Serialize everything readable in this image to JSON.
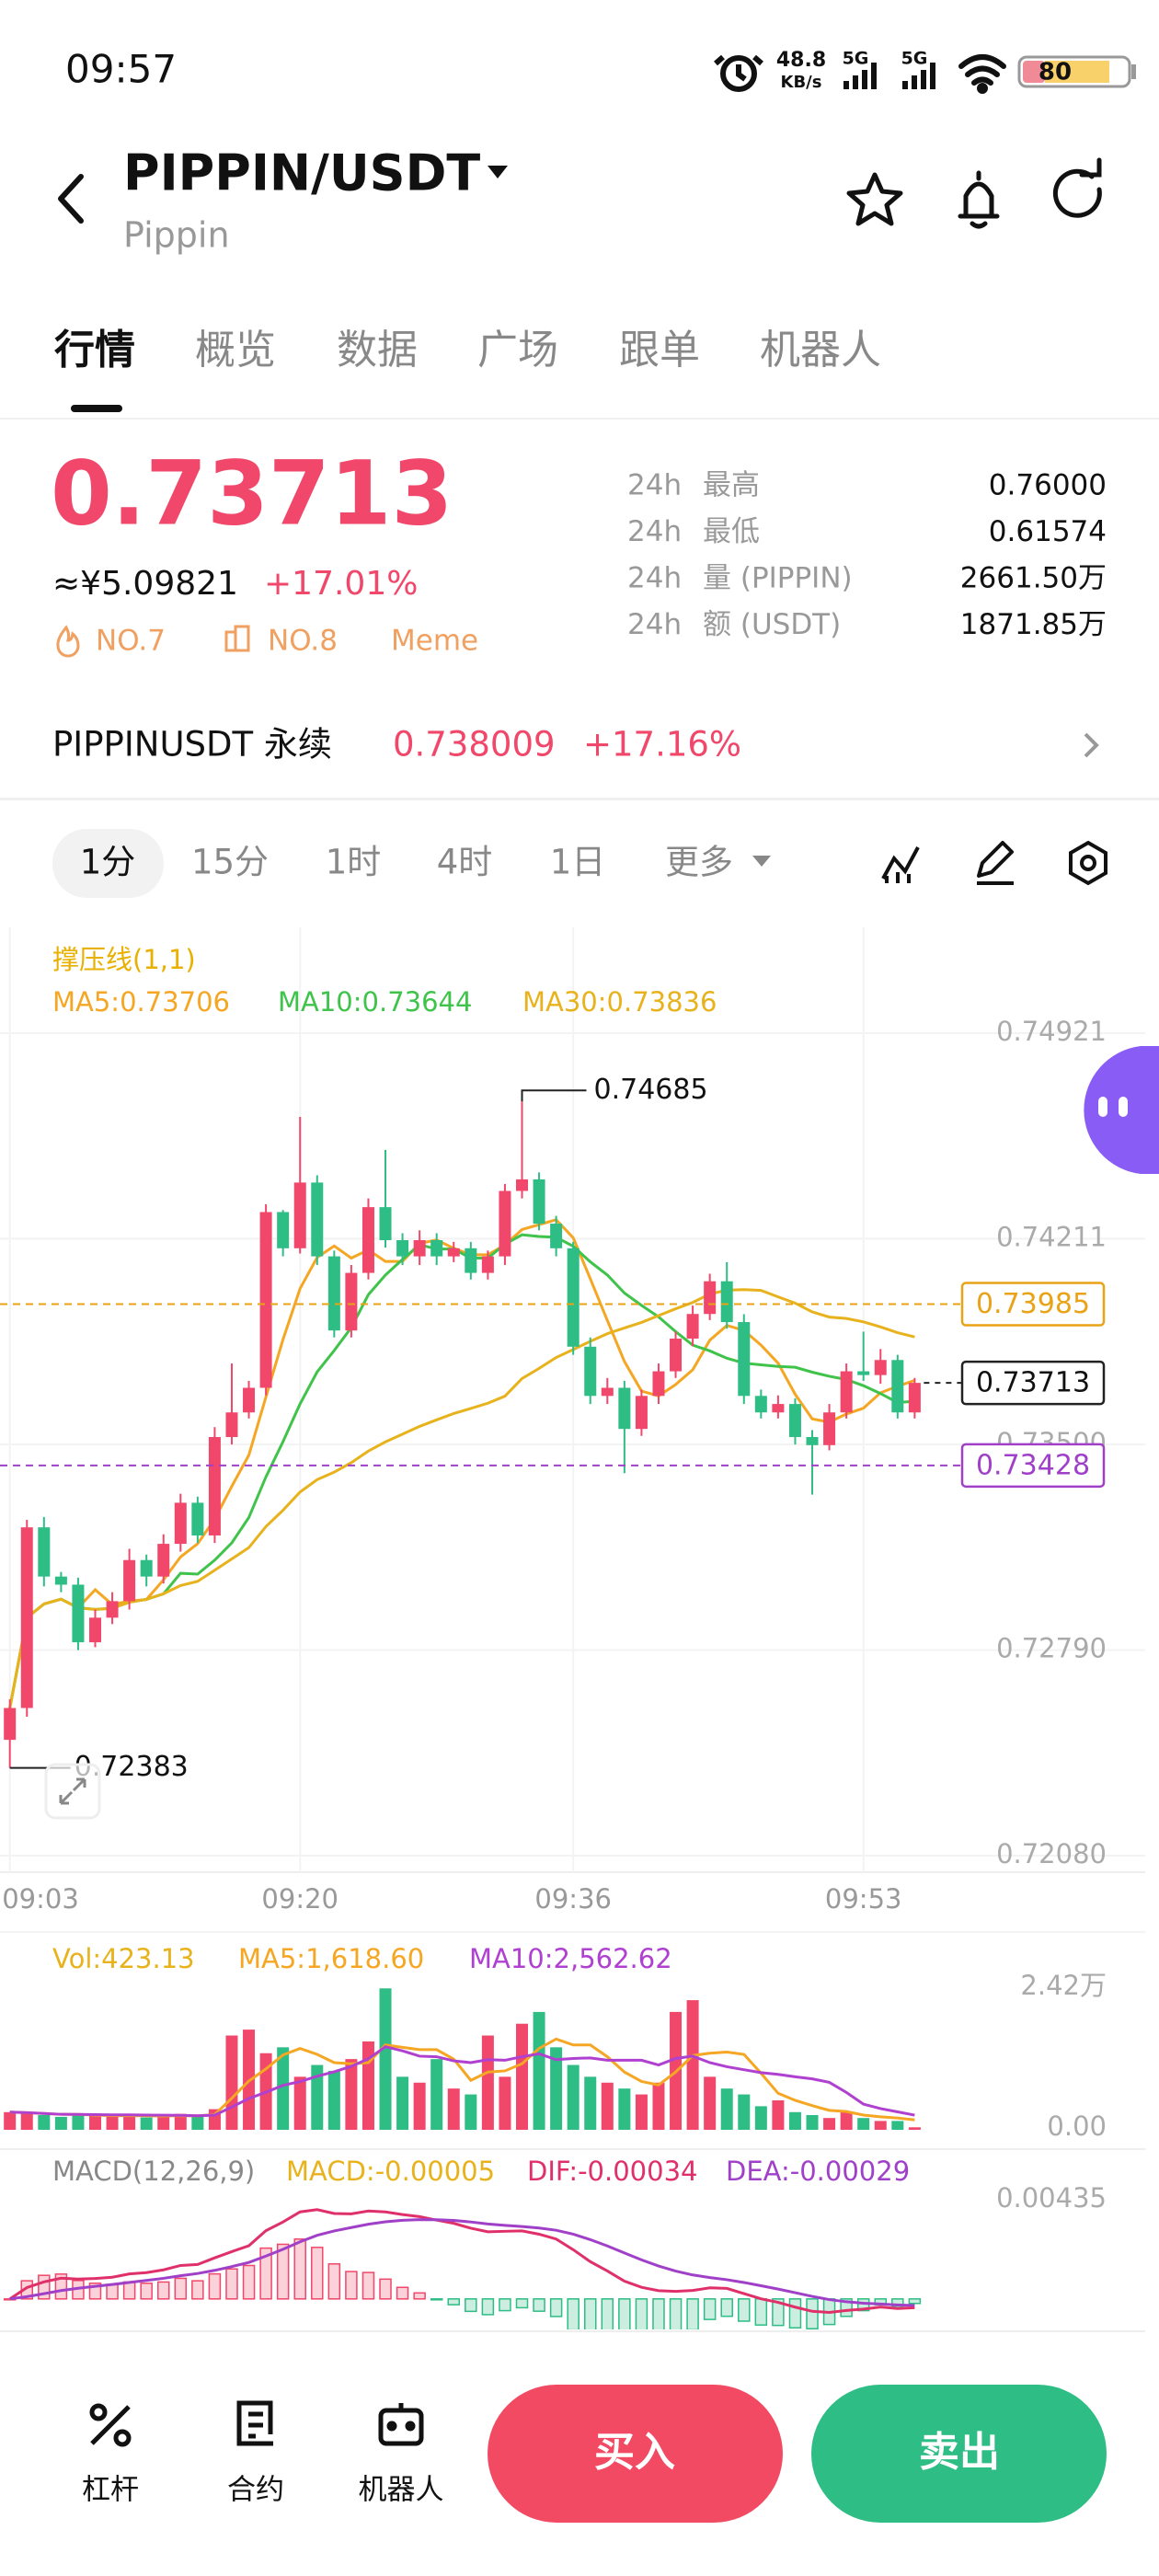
{
  "status_bar": {
    "time": "09:57",
    "net_speed": "48.8",
    "net_unit": "KB/s",
    "network_1": "5G",
    "network_2": "5G",
    "battery": "80"
  },
  "header": {
    "title": "PIPPIN/USDT",
    "subtitle": "Pippin"
  },
  "tabs": [
    "行情",
    "概览",
    "数据",
    "广场",
    "跟单",
    "机器人"
  ],
  "ticker": {
    "price": "0.73713",
    "cny_price": "≈¥5.09821",
    "change": "+17.01%",
    "tags": [
      "NO.7",
      "NO.8",
      "Meme"
    ],
    "stats": [
      {
        "period": "24h",
        "label": "最高",
        "value": "0.76000"
      },
      {
        "period": "24h",
        "label": "最低",
        "value": "0.61574"
      },
      {
        "period": "24h",
        "label": "量 (PIPPIN)",
        "value": "2661.50万"
      },
      {
        "period": "24h",
        "label": "额 (USDT)",
        "value": "1871.85万"
      }
    ]
  },
  "perpetual": {
    "symbol": "PIPPINUSDT 永续",
    "price": "0.738009",
    "change": "+17.16%"
  },
  "intervals": [
    "1分",
    "15分",
    "1时",
    "4时",
    "1日",
    "更多"
  ],
  "chart_data": {
    "type": "candlestick",
    "indicator_label": "撑压线(1,1)",
    "ma_legend": [
      "MA5:0.73706",
      "MA10:0.73644",
      "MA30:0.73836"
    ],
    "ma_colors": [
      "#f5a623",
      "#3fc34a",
      "#e8b21c"
    ],
    "up_color": "#f0476a",
    "down_color": "#2ebd85",
    "categories": [
      "09:03",
      null,
      null,
      null,
      null,
      null,
      null,
      null,
      null,
      null,
      null,
      null,
      null,
      null,
      null,
      null,
      null,
      "09:20",
      null,
      null,
      null,
      null,
      null,
      null,
      null,
      null,
      null,
      null,
      null,
      null,
      null,
      null,
      null,
      "09:36",
      null,
      null,
      null,
      null,
      null,
      null,
      null,
      null,
      null,
      null,
      null,
      null,
      null,
      null,
      null,
      null,
      "09:53",
      null,
      null,
      null
    ],
    "open": [
      0.7248,
      0.7259,
      0.73214,
      0.73044,
      0.73016,
      0.72817,
      0.72902,
      0.72959,
      0.73101,
      0.73044,
      0.73157,
      0.73299,
      0.73186,
      0.73526,
      0.73611,
      0.73696,
      0.74303,
      0.74178,
      0.74405,
      0.7415,
      0.73894,
      0.74093,
      0.7432,
      0.74206,
      0.7415,
      0.74206,
      0.7415,
      0.74178,
      0.74093,
      0.7415,
      0.74376,
      0.74416,
      0.74263,
      0.74178,
      0.73838,
      0.73668,
      0.73696,
      0.73554,
      0.73668,
      0.73753,
      0.73866,
      0.73951,
      0.74064,
      0.73923,
      0.73668,
      0.73611,
      0.7364,
      0.73526,
      0.73498,
      0.73611,
      0.73753,
      0.7374,
      0.73792,
      0.73611
    ],
    "high": [
      0.7262,
      0.7324,
      0.7325,
      0.7306,
      0.7304,
      0.7293,
      0.7299,
      0.7314,
      0.7312,
      0.7319,
      0.7333,
      0.7332,
      0.7356,
      0.7378,
      0.7372,
      0.7433,
      0.7431,
      0.74632,
      0.7443,
      0.7417,
      0.7412,
      0.7435,
      0.74518,
      0.7423,
      0.7424,
      0.7423,
      0.742,
      0.742,
      0.7417,
      0.744,
      0.74685,
      0.7444,
      0.7429,
      0.742,
      0.7387,
      0.7373,
      0.7372,
      0.7369,
      0.7378,
      0.7389,
      0.7398,
      0.7409,
      0.7413,
      0.7395,
      0.7369,
      0.7367,
      0.7366,
      0.7355,
      0.7364,
      0.7378,
      0.7389,
      0.7383,
      0.7381,
      0.7373
    ],
    "low": [
      0.72383,
      0.7256,
      0.7301,
      0.7299,
      0.7279,
      0.728,
      0.7288,
      0.7293,
      0.7301,
      0.7302,
      0.7313,
      0.7316,
      0.7316,
      0.735,
      0.7359,
      0.7367,
      0.7415,
      0.7416,
      0.7412,
      0.7387,
      0.7387,
      0.7407,
      0.7418,
      0.7412,
      0.7412,
      0.7412,
      0.7413,
      0.7407,
      0.7407,
      0.7412,
      0.7435,
      0.7424,
      0.7415,
      0.7381,
      0.7364,
      0.7364,
      0.73401,
      0.7353,
      0.7364,
      0.7373,
      0.7384,
      0.7393,
      0.739,
      0.7364,
      0.7359,
      0.7359,
      0.735,
      0.73327,
      0.7348,
      0.7359,
      0.7372,
      0.7371,
      0.7359,
      0.7359
    ],
    "close": [
      0.7259,
      0.73214,
      0.73044,
      0.73016,
      0.72817,
      0.72902,
      0.72959,
      0.73101,
      0.73044,
      0.73157,
      0.73299,
      0.73186,
      0.73526,
      0.73611,
      0.73696,
      0.74303,
      0.74178,
      0.74405,
      0.7415,
      0.73894,
      0.74093,
      0.7432,
      0.74206,
      0.7415,
      0.74206,
      0.7415,
      0.74178,
      0.74093,
      0.7415,
      0.74376,
      0.74416,
      0.74263,
      0.74178,
      0.73838,
      0.73668,
      0.73696,
      0.73554,
      0.73668,
      0.73753,
      0.73866,
      0.73951,
      0.74064,
      0.73923,
      0.73668,
      0.73611,
      0.7364,
      0.73526,
      0.73498,
      0.73611,
      0.73753,
      0.7374,
      0.73792,
      0.73611,
      0.73713
    ],
    "ylim": [
      0.7208,
      0.74921
    ],
    "yticks": [
      {
        "value": 0.7208,
        "label": "0.72080"
      },
      {
        "value": 0.7279,
        "label": "0.72790"
      },
      {
        "value": 0.735,
        "label": "0.73500"
      },
      0.74211,
      0.74921
    ],
    "resistance": 0.73985,
    "resistance_color": "#e8a317",
    "support": 0.73428,
    "support_color": "#a040c8",
    "current_price": 0.73713,
    "high_marker": 0.74685,
    "low_marker": 0.72383,
    "volume_legend": [
      "Vol:423.13",
      "MA5:1,618.60",
      "MA10:2,562.62"
    ],
    "volume_legend_colors": [
      "#e8b21c",
      "#f5a623",
      "#b040d0"
    ],
    "volume": [
      3000,
      2800,
      2500,
      2200,
      2600,
      2400,
      2300,
      2500,
      2100,
      2400,
      2700,
      2200,
      3500,
      16000,
      17000,
      13000,
      14000,
      9000,
      11000,
      10000,
      12000,
      15000,
      24000,
      9000,
      8000,
      12000,
      7000,
      6000,
      16000,
      9000,
      18000,
      20000,
      14000,
      11000,
      9000,
      8000,
      7000,
      6000,
      8000,
      20000,
      22000,
      9000,
      7000,
      6000,
      4000,
      5000,
      3000,
      2500,
      2000,
      3000,
      2000,
      1500,
      1500,
      423.13
    ],
    "volume_ylim": [
      0,
      24200
    ],
    "volume_yticks": [
      {
        "value": 0,
        "label": "0.00"
      },
      {
        "value": 24200,
        "label": "2.42万"
      }
    ],
    "macd_legend": [
      "MACD(12,26,9)",
      "MACD:-0.00005",
      "DIF:-0.00034",
      "DEA:-0.00029"
    ],
    "macd_legend_colors": [
      "#888888",
      "#e8b21c",
      "#e0306a",
      "#a040c8"
    ],
    "macd_ylim": [
      -0.0013,
      0.0048
    ],
    "macd_yticks": [
      0.00435
    ]
  },
  "bottom_bar": {
    "tools": [
      "杠杆",
      "合约",
      "机器人"
    ],
    "buy": "买入",
    "sell": "卖出"
  }
}
